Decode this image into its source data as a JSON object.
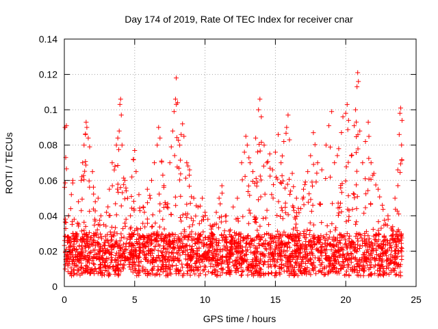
{
  "chart_data": {
    "type": "scatter",
    "title": "Day 174 of 2019, Rate Of TEC Index for receiver cnar",
    "xlabel": "GPS time / hours",
    "ylabel": "ROTI / TECUs",
    "xlim": [
      0,
      25
    ],
    "ylim": [
      0,
      0.14
    ],
    "xticks": [
      0,
      5,
      10,
      15,
      20,
      25
    ],
    "yticks": [
      0,
      0.02,
      0.04,
      0.06,
      0.08,
      0.1,
      0.12,
      0.14
    ],
    "xtick_labels": [
      "0",
      "5",
      "10",
      "15",
      "20",
      "25"
    ],
    "ytick_labels": [
      "0",
      "0.02",
      "0.04",
      "0.06",
      "0.08",
      "0.1",
      "0.12",
      "0.14"
    ],
    "grid": true,
    "marker": "plus",
    "color": "#ff0000",
    "series": [
      {
        "name": "ROTI",
        "points": [
          [
            0.05,
            0.09
          ],
          [
            0.1,
            0.073
          ],
          [
            0.15,
            0.091
          ],
          [
            0.2,
            0.028
          ],
          [
            0.3,
            0.04
          ],
          [
            0.35,
            0.021
          ],
          [
            0.45,
            0.044
          ],
          [
            0.5,
            0.052
          ],
          [
            0.6,
            0.06
          ],
          [
            0.7,
            0.038
          ],
          [
            0.8,
            0.018
          ],
          [
            1.0,
            0.048
          ],
          [
            1.2,
            0.06
          ],
          [
            1.3,
            0.07
          ],
          [
            1.4,
            0.08
          ],
          [
            1.5,
            0.086
          ],
          [
            1.55,
            0.093
          ],
          [
            1.6,
            0.09
          ],
          [
            1.7,
            0.084
          ],
          [
            1.8,
            0.079
          ],
          [
            2.0,
            0.065
          ],
          [
            2.2,
            0.048
          ],
          [
            2.4,
            0.05
          ],
          [
            2.6,
            0.04
          ],
          [
            2.8,
            0.035
          ],
          [
            3.0,
            0.042
          ],
          [
            3.2,
            0.055
          ],
          [
            3.4,
            0.07
          ],
          [
            3.6,
            0.068
          ],
          [
            3.7,
            0.08
          ],
          [
            3.8,
            0.084
          ],
          [
            3.9,
            0.088
          ],
          [
            3.95,
            0.103
          ],
          [
            4.0,
            0.106
          ],
          [
            4.05,
            0.097
          ],
          [
            4.1,
            0.08
          ],
          [
            4.3,
            0.06
          ],
          [
            4.5,
            0.05
          ],
          [
            4.7,
            0.04
          ],
          [
            4.8,
            0.062
          ],
          [
            4.9,
            0.072
          ],
          [
            5.0,
            0.077
          ],
          [
            5.1,
            0.065
          ],
          [
            5.3,
            0.052
          ],
          [
            5.6,
            0.045
          ],
          [
            5.9,
            0.055
          ],
          [
            6.2,
            0.06
          ],
          [
            6.4,
            0.07
          ],
          [
            6.6,
            0.08
          ],
          [
            6.7,
            0.09
          ],
          [
            6.8,
            0.084
          ],
          [
            7.0,
            0.063
          ],
          [
            7.3,
            0.045
          ],
          [
            7.5,
            0.07
          ],
          [
            7.6,
            0.079
          ],
          [
            7.7,
            0.088
          ],
          [
            7.8,
            0.099
          ],
          [
            7.9,
            0.106
          ],
          [
            7.95,
            0.118
          ],
          [
            8.05,
            0.104
          ],
          [
            8.2,
            0.08
          ],
          [
            8.3,
            0.086
          ],
          [
            8.4,
            0.092
          ],
          [
            8.5,
            0.085
          ],
          [
            8.7,
            0.07
          ],
          [
            8.9,
            0.066
          ],
          [
            9.2,
            0.05
          ],
          [
            9.5,
            0.045
          ],
          [
            9.8,
            0.05
          ],
          [
            10.0,
            0.042
          ],
          [
            10.2,
            0.038
          ],
          [
            10.5,
            0.034
          ],
          [
            10.8,
            0.042
          ],
          [
            11.0,
            0.05
          ],
          [
            11.2,
            0.057
          ],
          [
            11.5,
            0.04
          ],
          [
            11.8,
            0.032
          ],
          [
            12.0,
            0.045
          ],
          [
            12.3,
            0.05
          ],
          [
            12.6,
            0.07
          ],
          [
            12.8,
            0.076
          ],
          [
            12.9,
            0.085
          ],
          [
            13.0,
            0.08
          ],
          [
            13.2,
            0.07
          ],
          [
            13.4,
            0.065
          ],
          [
            13.6,
            0.084
          ],
          [
            13.8,
            0.1
          ],
          [
            13.9,
            0.106
          ],
          [
            14.0,
            0.096
          ],
          [
            14.2,
            0.08
          ],
          [
            14.4,
            0.07
          ],
          [
            14.6,
            0.075
          ],
          [
            14.8,
            0.066
          ],
          [
            15.0,
            0.076
          ],
          [
            15.2,
            0.086
          ],
          [
            15.4,
            0.07
          ],
          [
            15.6,
            0.082
          ],
          [
            15.8,
            0.09
          ],
          [
            15.9,
            0.097
          ],
          [
            16.0,
            0.083
          ],
          [
            16.2,
            0.064
          ],
          [
            16.5,
            0.05
          ],
          [
            16.8,
            0.044
          ],
          [
            17.0,
            0.055
          ],
          [
            17.3,
            0.065
          ],
          [
            17.5,
            0.074
          ],
          [
            17.7,
            0.087
          ],
          [
            18.0,
            0.07
          ],
          [
            18.3,
            0.066
          ],
          [
            18.6,
            0.08
          ],
          [
            18.8,
            0.091
          ],
          [
            19.0,
            0.099
          ],
          [
            19.2,
            0.07
          ],
          [
            19.5,
            0.078
          ],
          [
            19.8,
            0.096
          ],
          [
            20.0,
            0.098
          ],
          [
            20.1,
            0.103
          ],
          [
            20.2,
            0.094
          ],
          [
            20.4,
            0.074
          ],
          [
            20.6,
            0.091
          ],
          [
            20.7,
            0.1
          ],
          [
            20.8,
            0.113
          ],
          [
            20.85,
            0.121
          ],
          [
            20.9,
            0.116
          ],
          [
            21.0,
            0.088
          ],
          [
            21.2,
            0.07
          ],
          [
            21.4,
            0.082
          ],
          [
            21.6,
            0.093
          ],
          [
            21.8,
            0.07
          ],
          [
            22.0,
            0.064
          ],
          [
            22.3,
            0.055
          ],
          [
            22.6,
            0.046
          ],
          [
            23.0,
            0.04
          ],
          [
            23.3,
            0.032
          ],
          [
            23.5,
            0.05
          ],
          [
            23.7,
            0.066
          ],
          [
            23.8,
            0.086
          ],
          [
            23.85,
            0.098
          ],
          [
            23.9,
            0.101
          ],
          [
            24.0,
            0.094
          ]
        ]
      }
    ]
  }
}
